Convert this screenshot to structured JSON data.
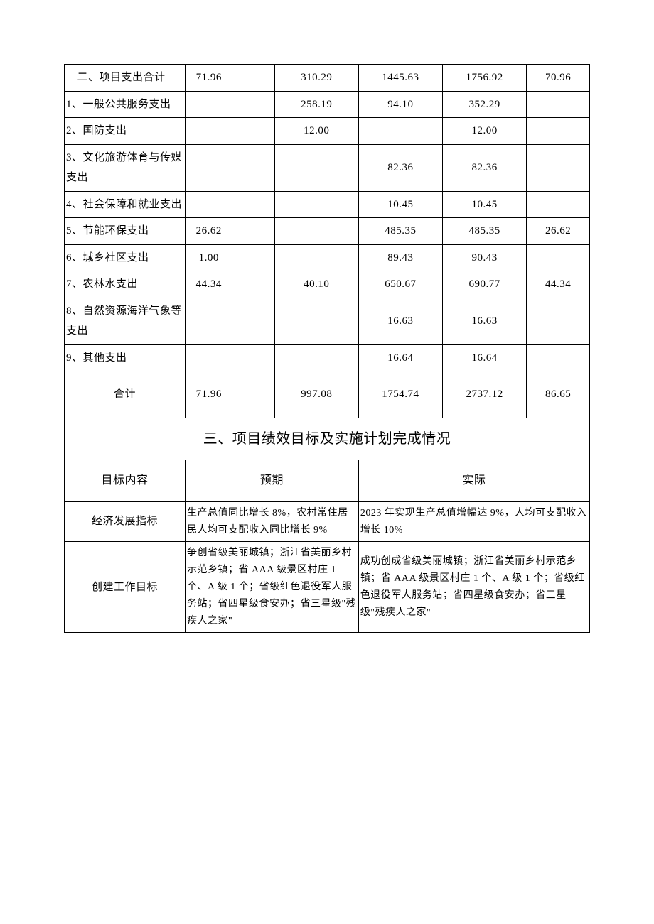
{
  "table1": {
    "rows": [
      {
        "label": "　二、项目支出合计",
        "c1": "71.96",
        "c2": "",
        "c3": "310.29",
        "c4": "1445.63",
        "c5": "1756.92",
        "c6": "70.96"
      },
      {
        "label": "1、一般公共服务支出",
        "c1": "",
        "c2": "",
        "c3": "258.19",
        "c4": "94.10",
        "c5": "352.29",
        "c6": ""
      },
      {
        "label": "2、国防支出",
        "c1": "",
        "c2": "",
        "c3": "12.00",
        "c4": "",
        "c5": "12.00",
        "c6": ""
      },
      {
        "label": "3、文化旅游体育与传媒支出",
        "c1": "",
        "c2": "",
        "c3": "",
        "c4": "82.36",
        "c5": "82.36",
        "c6": ""
      },
      {
        "label": "4、社会保障和就业支出",
        "c1": "",
        "c2": "",
        "c3": "",
        "c4": "10.45",
        "c5": "10.45",
        "c6": ""
      },
      {
        "label": "5、节能环保支出",
        "c1": "26.62",
        "c2": "",
        "c3": "",
        "c4": "485.35",
        "c5": "485.35",
        "c6": "26.62"
      },
      {
        "label": "6、城乡社区支出",
        "c1": "1.00",
        "c2": "",
        "c3": "",
        "c4": "89.43",
        "c5": "90.43",
        "c6": ""
      },
      {
        "label": "7、农林水支出",
        "c1": "44.34",
        "c2": "",
        "c3": "40.10",
        "c4": "650.67",
        "c5": "690.77",
        "c6": "44.34"
      },
      {
        "label": "8、自然资源海洋气象等支出",
        "c1": "",
        "c2": "",
        "c3": "",
        "c4": "16.63",
        "c5": "16.63",
        "c6": ""
      },
      {
        "label": "9、其他支出",
        "c1": "",
        "c2": "",
        "c3": "",
        "c4": "16.64",
        "c5": "16.64",
        "c6": ""
      }
    ],
    "total": {
      "label": "合计",
      "c1": "71.96",
      "c2": "",
      "c3": "997.08",
      "c4": "1754.74",
      "c5": "2737.12",
      "c6": "86.65"
    }
  },
  "section_title": "三、项目绩效目标及实施计划完成情况",
  "table2": {
    "header": {
      "col1": "目标内容",
      "col2": "预期",
      "col3": "实际"
    },
    "rows": [
      {
        "label": "经济发展指标",
        "expected": "生产总值同比增长 8%，农村常住居民人均可支配收入同比增长 9%",
        "actual": "2023 年实现生产总值增幅达 9%，人均可支配收入增长 10%"
      },
      {
        "label": "创建工作目标",
        "expected": "争创省级美丽城镇；浙江省美丽乡村示范乡镇；省 AAA 级景区村庄 1 个、A 级 1 个；省级红色退役军人服务站；省四星级食安办；省三星级\"残疾人之家\"",
        "actual": "成功创成省级美丽城镇；浙江省美丽乡村示范乡镇；省 AAA 级景区村庄 1 个、A 级 1 个；省级红色退役军人服务站；省四星级食安办；省三星级\"残疾人之家\""
      }
    ]
  }
}
